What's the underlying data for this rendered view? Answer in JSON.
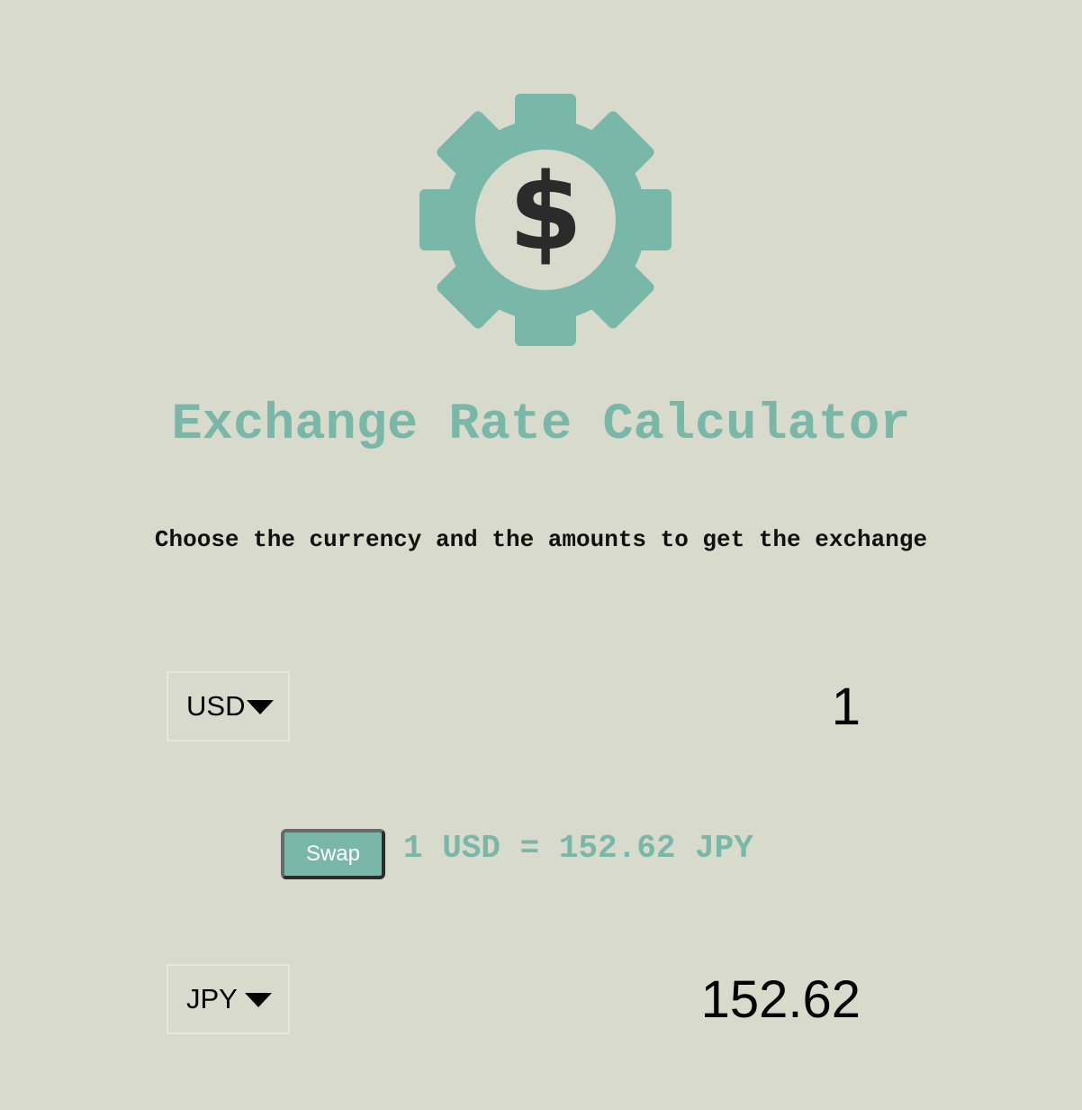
{
  "page": {
    "title": "Exchange Rate Calculator",
    "subtitle": "Choose the currency and the amounts to get the exchange"
  },
  "logo": {
    "icon": "gear-dollar-icon",
    "symbol": "$",
    "gear_color": "#79b8a9",
    "symbol_color": "#2b2b2b"
  },
  "converter": {
    "from": {
      "currency": "USD",
      "amount": "1"
    },
    "to": {
      "currency": "JPY",
      "amount": "152.62"
    },
    "swap_label": "Swap",
    "rate_text": "1 USD = 152.62 JPY"
  },
  "colors": {
    "background": "#d8dacc",
    "accent": "#79b8a9",
    "text": "#111111"
  }
}
